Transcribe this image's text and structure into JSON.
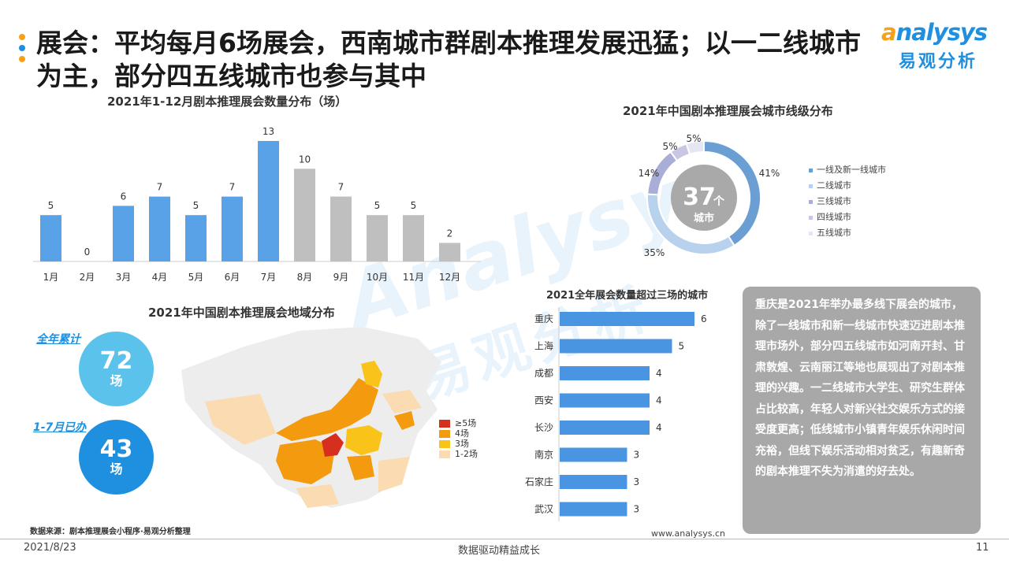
{
  "header": {
    "title": "展会：平均每月6场展会，西南城市群剧本推理发展迅猛；以一二线城市为主，部分四五线城市也参与其中",
    "logo_en": "nalysys",
    "logo_cn": "易观分析",
    "bullet_colors": [
      "#f7a11a",
      "#1f8fe0",
      "#f7a11a"
    ]
  },
  "watermark": {
    "en": "Analysys",
    "cn": "易观分析"
  },
  "monthly": {
    "title": "2021年1-12月剧本推理展会数量分布（场）",
    "chart_data": {
      "type": "bar",
      "categories": [
        "1月",
        "2月",
        "3月",
        "4月",
        "5月",
        "6月",
        "7月",
        "8月",
        "9月",
        "10月",
        "11月",
        "12月"
      ],
      "values": [
        5,
        0,
        6,
        7,
        5,
        7,
        13,
        10,
        7,
        5,
        5,
        2
      ],
      "colors": [
        "#5aa2e8",
        "#5aa2e8",
        "#5aa2e8",
        "#5aa2e8",
        "#5aa2e8",
        "#5aa2e8",
        "#5aa2e8",
        "#bfbfbf",
        "#bfbfbf",
        "#bfbfbf",
        "#bfbfbf",
        "#bfbfbf"
      ],
      "ylim": [
        0,
        13
      ]
    }
  },
  "tiers": {
    "title": "2021年中国剧本推理展会城市线级分布",
    "center_number": "37",
    "center_unit": "个",
    "center_label": "城市",
    "chart_data": {
      "type": "pie",
      "labels": [
        "一线及新一线城市",
        "二线城市",
        "三线城市",
        "四线城市",
        "五线城市"
      ],
      "values": [
        41,
        35,
        14,
        5,
        5
      ],
      "display": [
        "41%",
        "35%",
        "14%",
        "5%",
        "5%"
      ],
      "colors": [
        "#6b9fd4",
        "#b8d1ec",
        "#a9aed6",
        "#c9c6e3",
        "#e4e7f2"
      ]
    }
  },
  "region": {
    "title": "2021年中国剧本推理展会地域分布",
    "total_label": "全年累计",
    "total_value": "72",
    "total_unit": "场",
    "ytd_label": "1-7月已办",
    "ytd_value": "43",
    "ytd_unit": "场",
    "legend": [
      {
        "label": "≥5场",
        "color": "#d62f1e"
      },
      {
        "label": "4场",
        "color": "#f39a0e"
      },
      {
        "label": "3场",
        "color": "#f9c31a"
      },
      {
        "label": "1-2场",
        "color": "#fbdcb2"
      }
    ]
  },
  "cities": {
    "title": "2021全年展会数量超过三场的城市",
    "chart_data": {
      "type": "bar",
      "orientation": "horizontal",
      "categories": [
        "重庆",
        "上海",
        "成都",
        "西安",
        "长沙",
        "南京",
        "石家庄",
        "武汉"
      ],
      "values": [
        6,
        5,
        4,
        4,
        4,
        3,
        3,
        3
      ],
      "xlim": [
        0,
        6
      ]
    }
  },
  "description": "重庆是2021年举办最多线下展会的城市，除了一线城市和新一线城市快速迈进剧本推理市场外，部分四五线城市如河南开封、甘肃敦煌、云南丽江等地也展现出了对剧本推理的兴趣。一二线城市大学生、研究生群体占比较高，年轻人对新兴社交娱乐方式的接受度更高；低线城市小镇青年娱乐休闲时间充裕，但线下娱乐活动相对贫乏，有趣新奇的剧本推理不失为消遣的好去处。",
  "footer": {
    "source": "数据来源：剧本推理展会小程序·易观分析整理",
    "website": "www.analysys.cn",
    "date": "2021/8/23",
    "slogan": "数据驱动精益成长",
    "page": "11"
  }
}
